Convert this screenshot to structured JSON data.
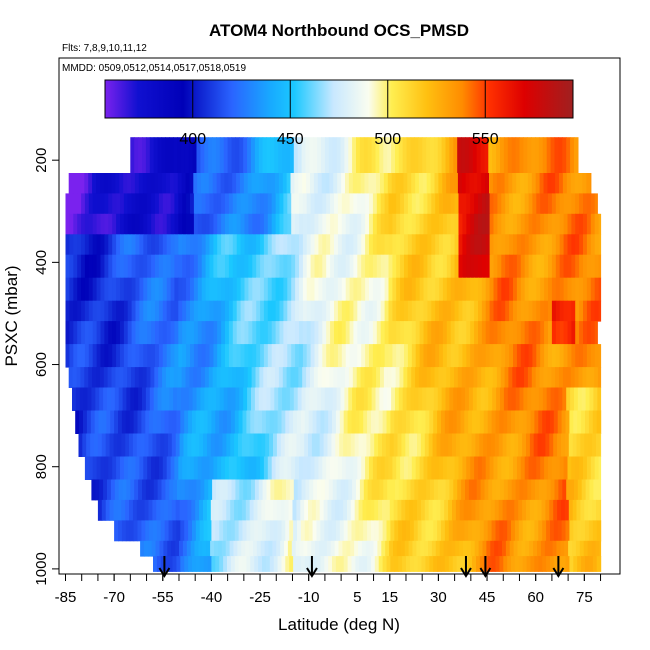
{
  "chart_data": {
    "type": "heatmap",
    "title": "ATOM4 Northbound OCS_PMSD",
    "subtitle_flights": "Flts: 7,8,9,10,11,12",
    "subtitle_dates": "MMDD: 0509,0512,0514,0517,0518,0519",
    "xlabel": "Latitude (deg N)",
    "ylabel": "PSXC (mbar)",
    "xlim": [
      -87,
      86
    ],
    "ylim": [
      1010,
      0
    ],
    "x_ticks": [
      -85,
      -70,
      -55,
      -40,
      -25,
      -10,
      5,
      15,
      30,
      45,
      60,
      75
    ],
    "x_tick_labels": [
      "-85",
      "-70",
      "-55",
      "-40",
      "-25",
      "-10",
      "5",
      "15",
      "30",
      "45",
      "60",
      "75"
    ],
    "y_ticks": [
      200,
      400,
      600,
      800,
      1000
    ],
    "y_tick_labels": [
      "200",
      "400",
      "600",
      "800",
      "1000"
    ],
    "colorbar": {
      "range": [
        355,
        595
      ],
      "ticks": [
        400,
        450,
        500,
        550
      ],
      "tick_labels": [
        "400",
        "450",
        "500",
        "550"
      ],
      "stops": [
        [
          355,
          "#7a22ee"
        ],
        [
          372,
          "#1010d0"
        ],
        [
          395,
          "#0000b8"
        ],
        [
          420,
          "#2a64ff"
        ],
        [
          440,
          "#18aaff"
        ],
        [
          452,
          "#1bc8ff"
        ],
        [
          472,
          "#c8e8ff"
        ],
        [
          490,
          "#fafdf0"
        ],
        [
          502,
          "#ffee50"
        ],
        [
          520,
          "#ffc010"
        ],
        [
          538,
          "#ff8c00"
        ],
        [
          552,
          "#ff3000"
        ],
        [
          570,
          "#dd0000"
        ],
        [
          595,
          "#a02020"
        ]
      ]
    },
    "profile_latitudes": [
      -54.5,
      -9,
      38.5,
      44.5,
      67
    ]
  }
}
